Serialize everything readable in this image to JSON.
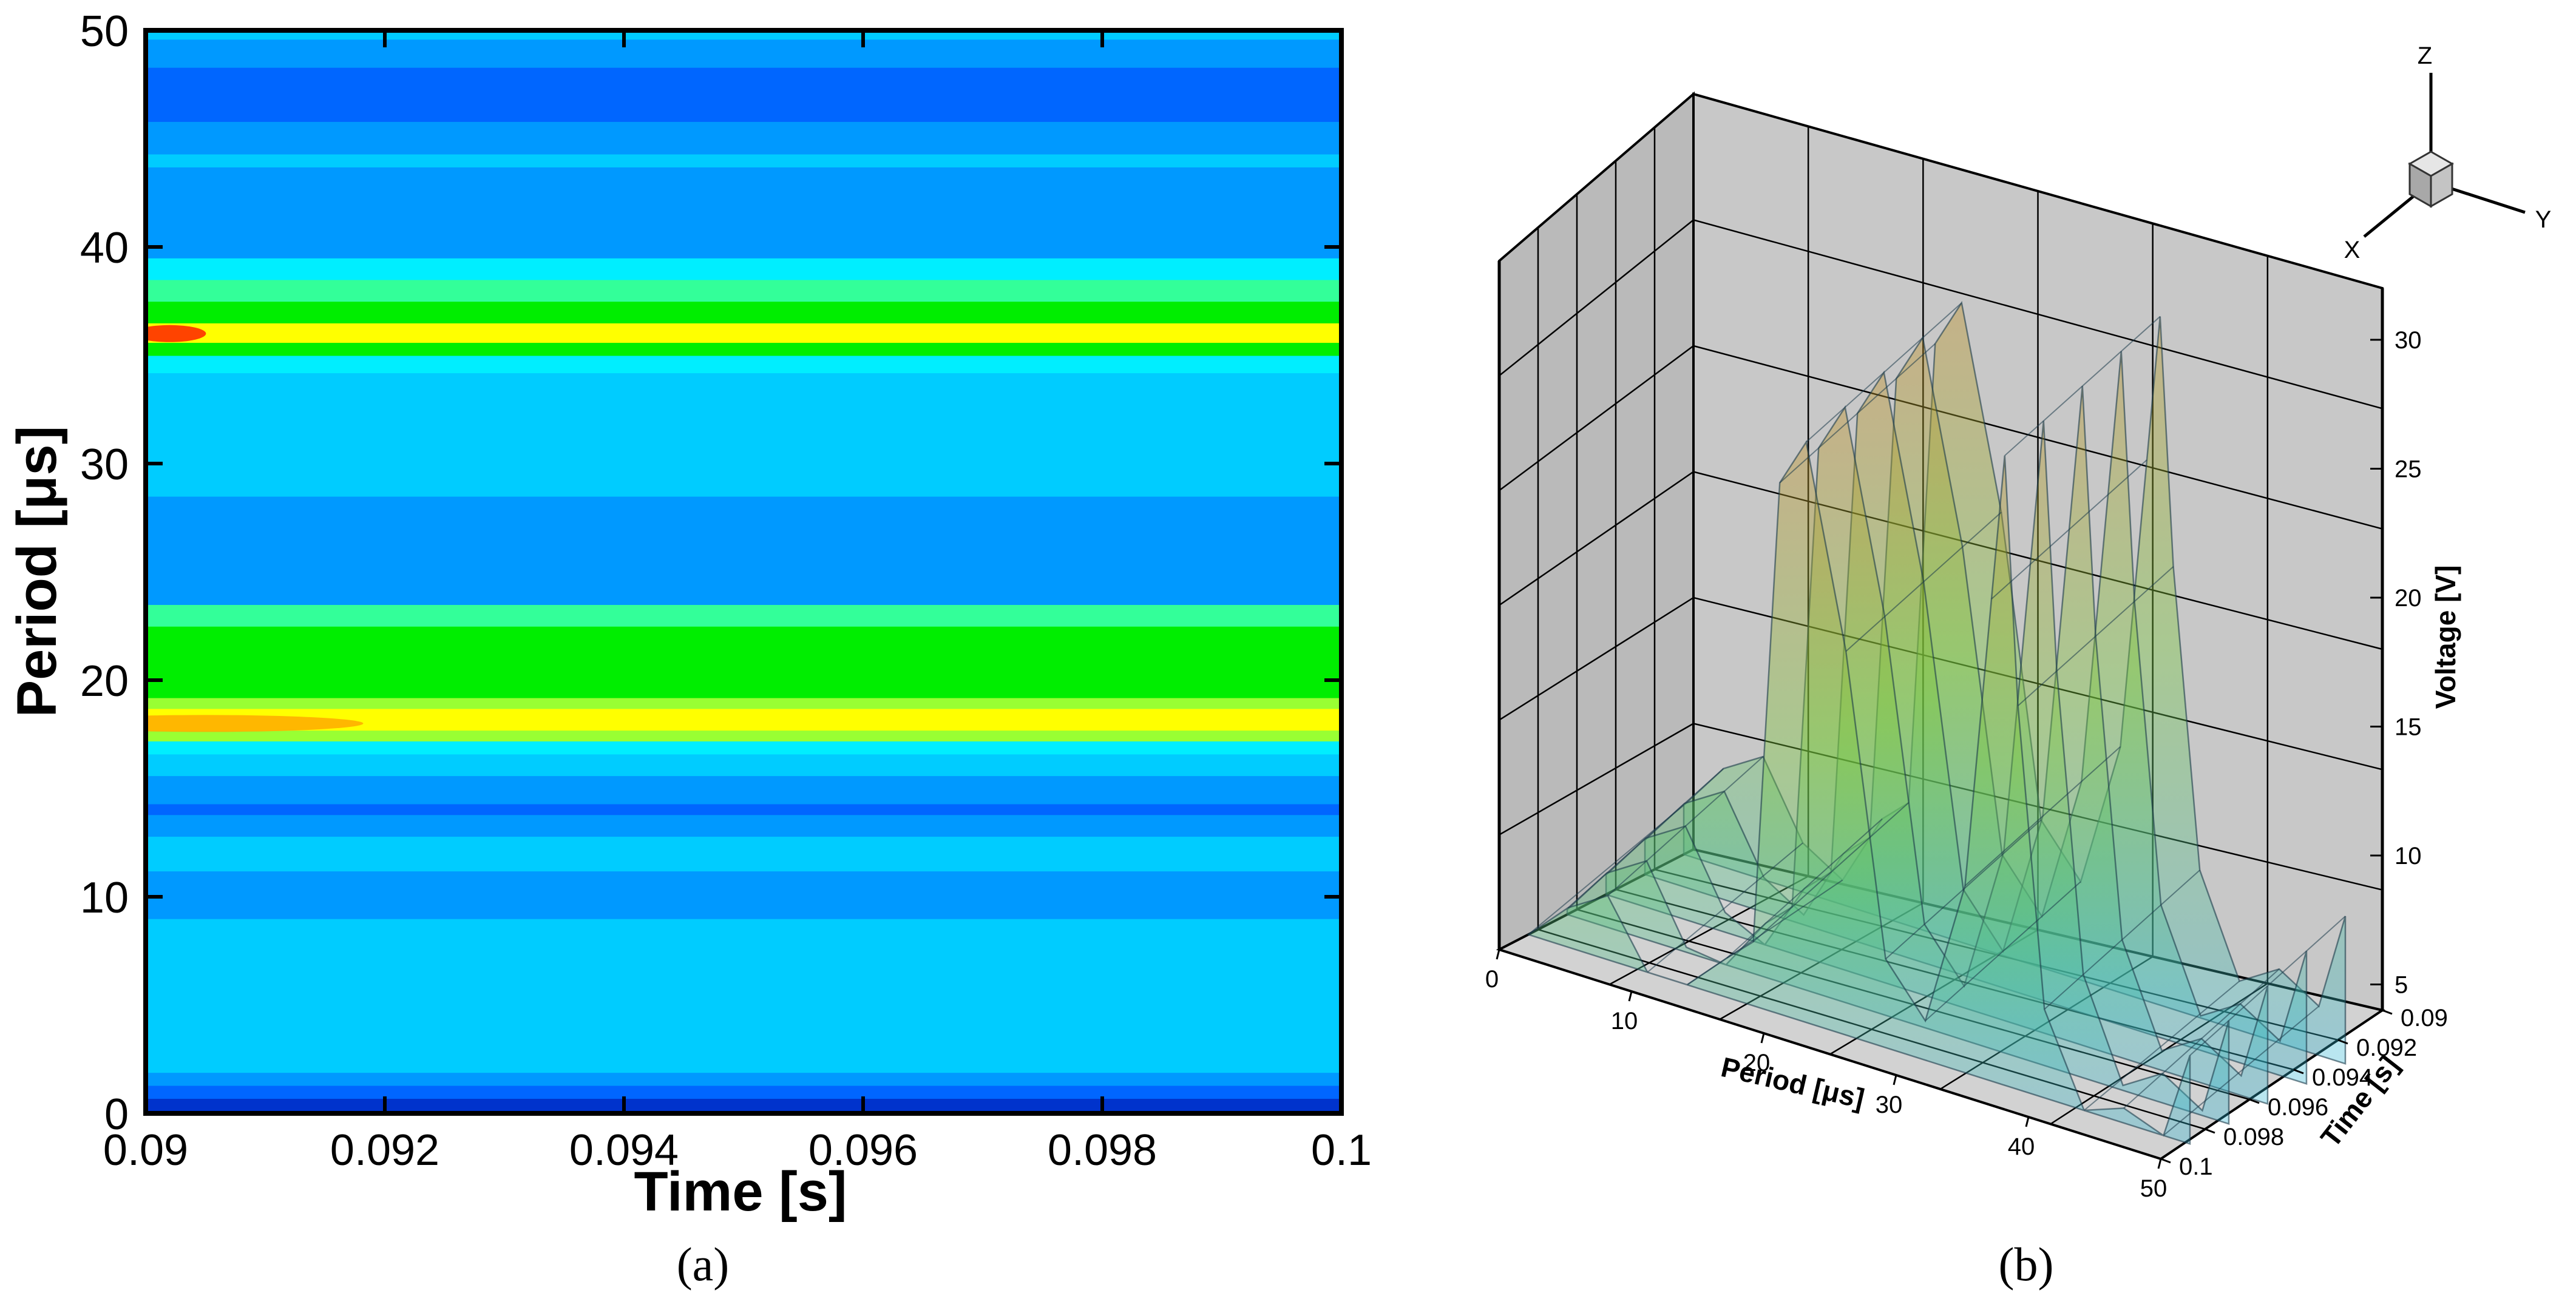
{
  "panels": {
    "a": {
      "caption": "(a)"
    },
    "b": {
      "caption": "(b)"
    }
  },
  "chart_data": [
    {
      "type": "heatmap",
      "panel": "a",
      "title": "",
      "xlabel": "Time [s]",
      "ylabel": "Period [μs]",
      "xlim": [
        0.09,
        0.1
      ],
      "ylim": [
        0,
        50
      ],
      "xticks": [
        "0.09",
        "0.092",
        "0.094",
        "0.096",
        "0.098",
        "0.1"
      ],
      "yticks": [
        "0",
        "10",
        "20",
        "30",
        "40",
        "50"
      ],
      "grid": false,
      "colorscale": [
        "#0033cc",
        "#0066ff",
        "#0099ff",
        "#00ccff",
        "#00eeff",
        "#33ff99",
        "#00ee00",
        "#99ff33",
        "#ffff00",
        "#ffaa00",
        "#ff2200"
      ],
      "bands": [
        {
          "y0": 0.0,
          "y1": 0.7,
          "level": 0
        },
        {
          "y0": 0.7,
          "y1": 1.3,
          "level": 1
        },
        {
          "y0": 1.3,
          "y1": 1.9,
          "level": 2
        },
        {
          "y0": 1.9,
          "y1": 9.0,
          "level": 3
        },
        {
          "y0": 9.0,
          "y1": 11.2,
          "level": 2
        },
        {
          "y0": 11.2,
          "y1": 12.8,
          "level": 3
        },
        {
          "y0": 12.8,
          "y1": 13.8,
          "level": 2
        },
        {
          "y0": 13.8,
          "y1": 14.3,
          "level": 1
        },
        {
          "y0": 14.3,
          "y1": 15.6,
          "level": 2
        },
        {
          "y0": 15.6,
          "y1": 16.6,
          "level": 3
        },
        {
          "y0": 16.6,
          "y1": 17.2,
          "level": 4
        },
        {
          "y0": 17.2,
          "y1": 17.7,
          "level": 7
        },
        {
          "y0": 17.7,
          "y1": 18.7,
          "level": 8
        },
        {
          "y0": 18.7,
          "y1": 19.2,
          "level": 7
        },
        {
          "y0": 19.2,
          "y1": 22.5,
          "level": 6
        },
        {
          "y0": 22.5,
          "y1": 23.5,
          "level": 5
        },
        {
          "y0": 23.5,
          "y1": 28.5,
          "level": 2
        },
        {
          "y0": 28.5,
          "y1": 34.2,
          "level": 3
        },
        {
          "y0": 34.2,
          "y1": 35.0,
          "level": 4
        },
        {
          "y0": 35.0,
          "y1": 35.6,
          "level": 6
        },
        {
          "y0": 35.6,
          "y1": 36.5,
          "level": 8
        },
        {
          "y0": 36.5,
          "y1": 37.5,
          "level": 6
        },
        {
          "y0": 37.5,
          "y1": 38.5,
          "level": 5
        },
        {
          "y0": 38.5,
          "y1": 39.5,
          "level": 4
        },
        {
          "y0": 39.5,
          "y1": 43.7,
          "level": 2
        },
        {
          "y0": 43.7,
          "y1": 44.3,
          "level": 3
        },
        {
          "y0": 44.3,
          "y1": 45.8,
          "level": 2
        },
        {
          "y0": 45.8,
          "y1": 48.3,
          "level": 1
        },
        {
          "y0": 48.3,
          "y1": 49.6,
          "level": 2
        },
        {
          "y0": 49.6,
          "y1": 50.0,
          "level": 3
        }
      ],
      "hotspots": [
        {
          "x": 0.0902,
          "y": 36.0,
          "level": 10
        },
        {
          "x": 0.0905,
          "y": 18.0,
          "level": 9
        }
      ]
    },
    {
      "type": "surface3d",
      "panel": "b",
      "title": "",
      "xlabel": "Period [μs]",
      "ylabel": "Time [s]",
      "zlabel": "Voltage [V]",
      "xticks": [
        "0",
        "10",
        "20",
        "30",
        "40",
        "50"
      ],
      "yticks": [
        "0.09",
        "0.092",
        "0.094",
        "0.096",
        "0.098",
        "0.1"
      ],
      "zticks": [
        "5",
        "10",
        "15",
        "20",
        "25",
        "30"
      ],
      "xlim": [
        0,
        50
      ],
      "ylim": [
        0.09,
        0.1
      ],
      "zlim": [
        4,
        32
      ],
      "period": [
        0,
        3,
        6,
        9,
        12,
        15,
        17,
        19,
        21,
        24,
        27,
        30,
        33,
        35,
        36,
        37,
        39,
        42,
        45,
        48,
        50
      ],
      "voltage": [
        6,
        8,
        9,
        6,
        5,
        8,
        9,
        28,
        30,
        22,
        10,
        8,
        14,
        26,
        32,
        22,
        10,
        6,
        7,
        6,
        10
      ],
      "axis_triad": [
        "X",
        "Y",
        "Z"
      ]
    }
  ]
}
